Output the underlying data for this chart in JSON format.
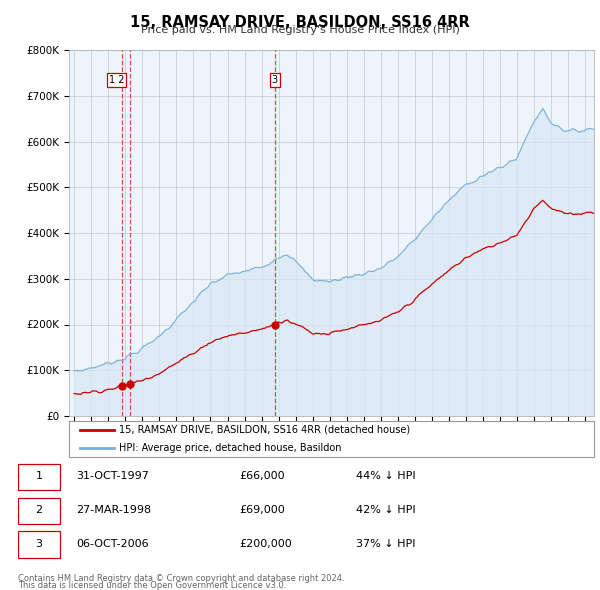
{
  "title": "15, RAMSAY DRIVE, BASILDON, SS16 4RR",
  "subtitle": "Price paid vs. HM Land Registry's House Price Index (HPI)",
  "legend_line1": "15, RAMSAY DRIVE, BASILDON, SS16 4RR (detached house)",
  "legend_line2": "HPI: Average price, detached house, Basildon",
  "footer1": "Contains HM Land Registry data © Crown copyright and database right 2024.",
  "footer2": "This data is licensed under the Open Government Licence v3.0.",
  "transactions": [
    {
      "num": 1,
      "date": "31-OCT-1997",
      "price": 66000,
      "pct": "44%",
      "dir": "↓"
    },
    {
      "num": 2,
      "date": "27-MAR-1998",
      "price": 69000,
      "pct": "42%",
      "dir": "↓"
    },
    {
      "num": 3,
      "date": "06-OCT-2006",
      "price": 200000,
      "pct": "37%",
      "dir": "↓"
    }
  ],
  "hpi_color": "#7aaed6",
  "hpi_fill": "#d8e8f5",
  "price_color": "#cc0000",
  "background_color": "#eef4fb",
  "grid_color": "#c0c8d8",
  "ylim": [
    0,
    800000
  ],
  "xlim": [
    1994.7,
    2025.5
  ],
  "yticks": [
    0,
    100000,
    200000,
    300000,
    400000,
    500000,
    600000,
    700000,
    800000
  ]
}
